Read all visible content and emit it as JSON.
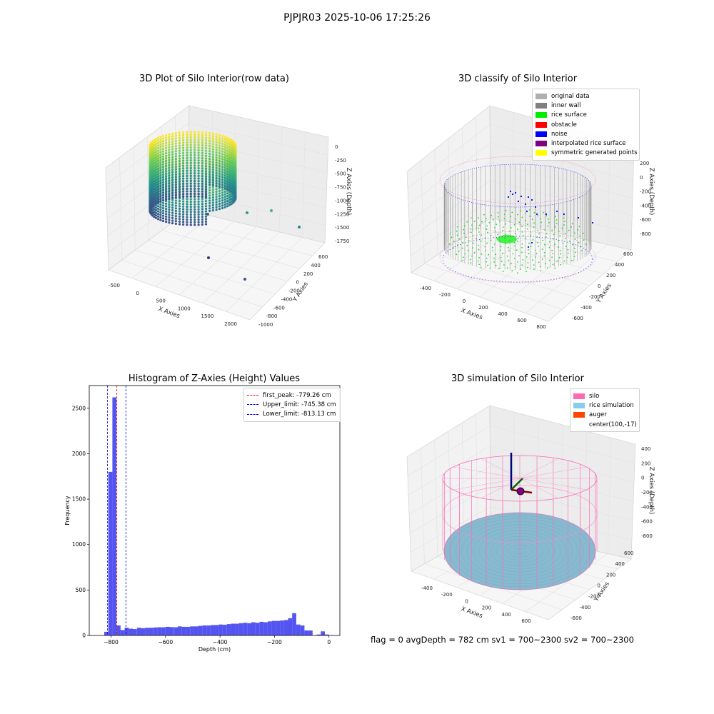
{
  "suptitle": "PJPJR03 2025-10-06 17:25:26",
  "footer": "flag = 0     avgDepth = 782 cm  sv1 = 700~2300  sv2 = 700~2300",
  "colors": {
    "original": "#b0b0b0",
    "inner_wall": "#808080",
    "rice_surface": "#00ee00",
    "obstacle": "#ff0000",
    "noise": "#0000ff",
    "interpolated": "#800080",
    "symmetric": "#ffff00",
    "silo": "#ff69b4",
    "rice_sim": "#87ceeb",
    "auger": "#ff4500",
    "hist_bar": "#4b4bf0",
    "peak": "#ff0000",
    "limit": "#0000cc"
  },
  "chart_data": [
    {
      "type": "scatter",
      "title": "3D Plot of Silo Interior(row data)",
      "xlabel": "X Axies",
      "ylabel": "Y Axies",
      "zlabel": "Z Axies (Depth)",
      "x_ticks": [
        "-500",
        "0",
        "500",
        "1000",
        "1500",
        "2000"
      ],
      "y_ticks": [
        "-1000",
        "-800",
        "-600",
        "-400",
        "-200",
        "0",
        "200",
        "400",
        "600"
      ],
      "z_ticks": [
        "0",
        "-250",
        "-500",
        "-750",
        "-1000",
        "-1250",
        "-1500",
        "-1750"
      ],
      "colormap": "viridis"
    },
    {
      "type": "scatter",
      "title": "3D classify of Silo Interior",
      "xlabel": "X Axies",
      "ylabel": "Y Axies",
      "zlabel": "Z Axies (Depth)",
      "x_ticks": [
        "-400",
        "-200",
        "0",
        "200",
        "400",
        "600",
        "800"
      ],
      "y_ticks": [
        "-600",
        "-400",
        "-200",
        "0",
        "200",
        "400",
        "600"
      ],
      "z_ticks": [
        "200",
        "0",
        "-200",
        "-400",
        "-600",
        "-800"
      ],
      "legend": [
        "original data",
        "inner wall",
        "rice surface",
        "obstacle",
        "noise",
        "interpolated rice surface",
        "symmetric generated points"
      ],
      "legend_placement": "top-right"
    },
    {
      "type": "bar",
      "title": "Histogram of Z-Axies (Height) Values",
      "xlabel": "Depth (cm)",
      "ylabel": "Frequency",
      "xlim": [
        -880,
        40
      ],
      "ylim": [
        0,
        2750
      ],
      "x_ticks": [
        -800,
        -600,
        -400,
        -200,
        0
      ],
      "y_ticks": [
        0,
        500,
        1000,
        1500,
        2000,
        2500
      ],
      "bin_width": 15,
      "bins": [
        [
          -825,
          40
        ],
        [
          -810,
          1800
        ],
        [
          -795,
          2620
        ],
        [
          -780,
          110
        ],
        [
          -765,
          60
        ],
        [
          -750,
          85
        ],
        [
          -735,
          75
        ],
        [
          -720,
          70
        ],
        [
          -705,
          85
        ],
        [
          -690,
          80
        ],
        [
          -675,
          85
        ],
        [
          -660,
          85
        ],
        [
          -645,
          88
        ],
        [
          -630,
          90
        ],
        [
          -615,
          90
        ],
        [
          -600,
          95
        ],
        [
          -585,
          92
        ],
        [
          -570,
          90
        ],
        [
          -555,
          100
        ],
        [
          -540,
          95
        ],
        [
          -525,
          95
        ],
        [
          -510,
          100
        ],
        [
          -495,
          100
        ],
        [
          -480,
          105
        ],
        [
          -465,
          110
        ],
        [
          -450,
          110
        ],
        [
          -435,
          115
        ],
        [
          -420,
          115
        ],
        [
          -405,
          120
        ],
        [
          -390,
          118
        ],
        [
          -375,
          125
        ],
        [
          -360,
          130
        ],
        [
          -345,
          130
        ],
        [
          -330,
          135
        ],
        [
          -315,
          140
        ],
        [
          -300,
          135
        ],
        [
          -285,
          145
        ],
        [
          -270,
          140
        ],
        [
          -255,
          150
        ],
        [
          -240,
          145
        ],
        [
          -225,
          155
        ],
        [
          -210,
          160
        ],
        [
          -195,
          160
        ],
        [
          -180,
          165
        ],
        [
          -165,
          170
        ],
        [
          -150,
          190
        ],
        [
          -135,
          245
        ],
        [
          -120,
          120
        ],
        [
          -105,
          110
        ],
        [
          -90,
          55
        ],
        [
          -75,
          55
        ],
        [
          -60,
          0
        ],
        [
          -45,
          10
        ],
        [
          -30,
          45
        ],
        [
          -15,
          10
        ]
      ],
      "vlines": [
        {
          "label": "first_peak: -779.26 cm",
          "x": -779.26,
          "color": "#ff0000"
        },
        {
          "label": "Upper_limit: -745.38 cm",
          "x": -745.38,
          "color": "#0000cc"
        },
        {
          "label": "Lower_limit: -813.13 cm",
          "x": -813.13,
          "color": "#0000cc"
        }
      ],
      "legend_placement": "top-right"
    },
    {
      "type": "scatter",
      "title": "3D simulation of Silo Interior",
      "xlabel": "X Axies",
      "ylabel": "Y Axies",
      "zlabel": "Z Axies (Depth)",
      "x_ticks": [
        "-400",
        "-200",
        "0",
        "200",
        "400",
        "600"
      ],
      "y_ticks": [
        "-600",
        "-400",
        "-200",
        "0",
        "200",
        "400",
        "600"
      ],
      "z_ticks": [
        "400",
        "200",
        "0",
        "-200",
        "-400",
        "-600",
        "-800"
      ],
      "legend": [
        "silo",
        "rice simulation",
        "auger",
        "center(100,-17)"
      ],
      "legend_placement": "top-right"
    }
  ]
}
